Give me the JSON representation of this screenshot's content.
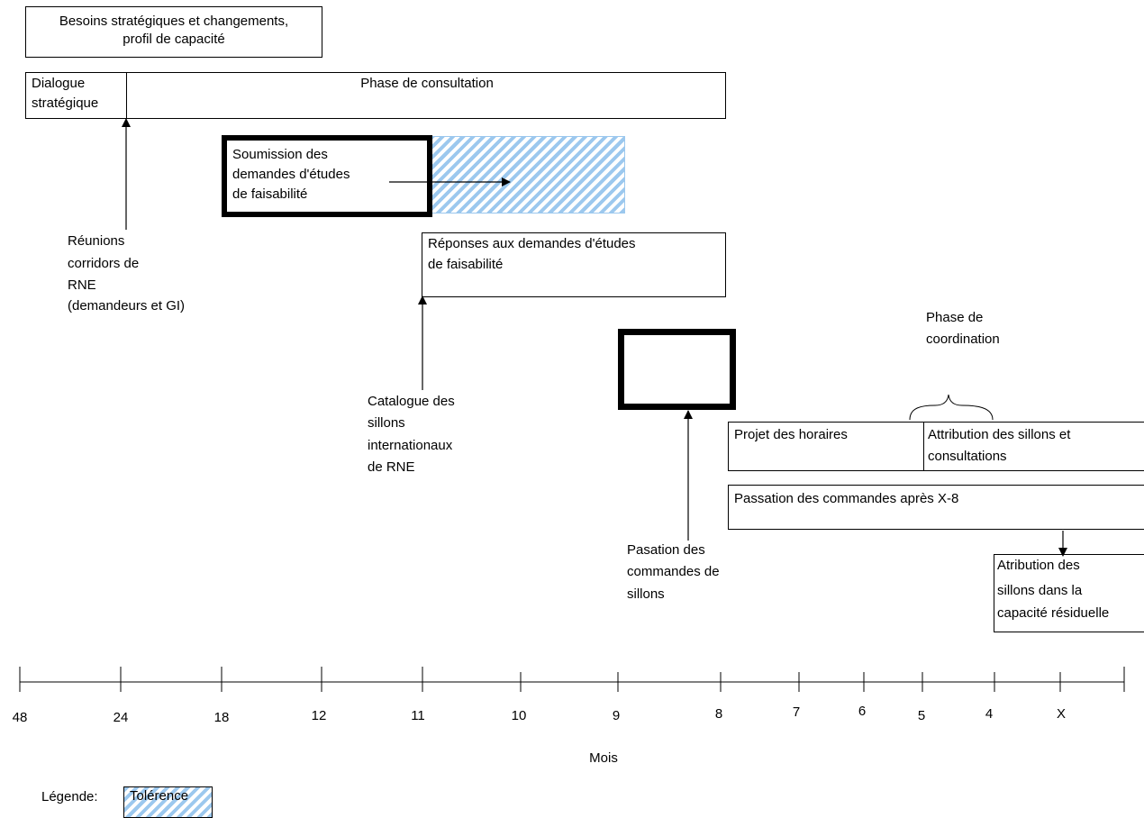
{
  "strategic_needs": {
    "line1": "Besoins stratégiques et changements,",
    "line2": "profil de capacité"
  },
  "dialogue": {
    "line1": "Dialogue",
    "line2": "stratégique"
  },
  "consultation_phase": "Phase de consultation",
  "submission": {
    "line1": "Soumission des",
    "line2": "demandes d'études",
    "line3": "de faisabilité"
  },
  "responses": {
    "line1": "Réponses aux demandes d'études",
    "line2": "de faisabilité"
  },
  "rne_meetings": {
    "line1": "Réunions",
    "line2": "corridors de",
    "line3": "RNE",
    "line4": "(demandeurs et GI)"
  },
  "catalogue": {
    "line1": "Catalogue des",
    "line2": "sillons",
    "line3": "internationaux",
    "line4": "de RNE"
  },
  "path_orders": {
    "line1": "Pasation des",
    "line2": "commandes de",
    "line3": "sillons"
  },
  "coordination_phase": {
    "line1": "Phase de",
    "line2": "coordination"
  },
  "timetable_draft": "Projet des horaires",
  "path_allocation": {
    "line1": "Attribution des sillons et",
    "line2": "consultations"
  },
  "late_orders": "Passation des commandes après  X-8",
  "residual": {
    "line1": "Atribution des",
    "line2": "sillons dans la",
    "line3": "capacité résiduelle"
  },
  "timeline": {
    "ticks": [
      "48",
      "24",
      "18",
      "12",
      "11",
      "10",
      "9",
      "8",
      "7",
      "6",
      "5",
      "4",
      "X"
    ],
    "axis_label": "Mois"
  },
  "legend": {
    "label": "Légende:",
    "tolerance": "Tolérence"
  },
  "colors": {
    "hatch": "#9cc8ee",
    "line": "#000000"
  }
}
